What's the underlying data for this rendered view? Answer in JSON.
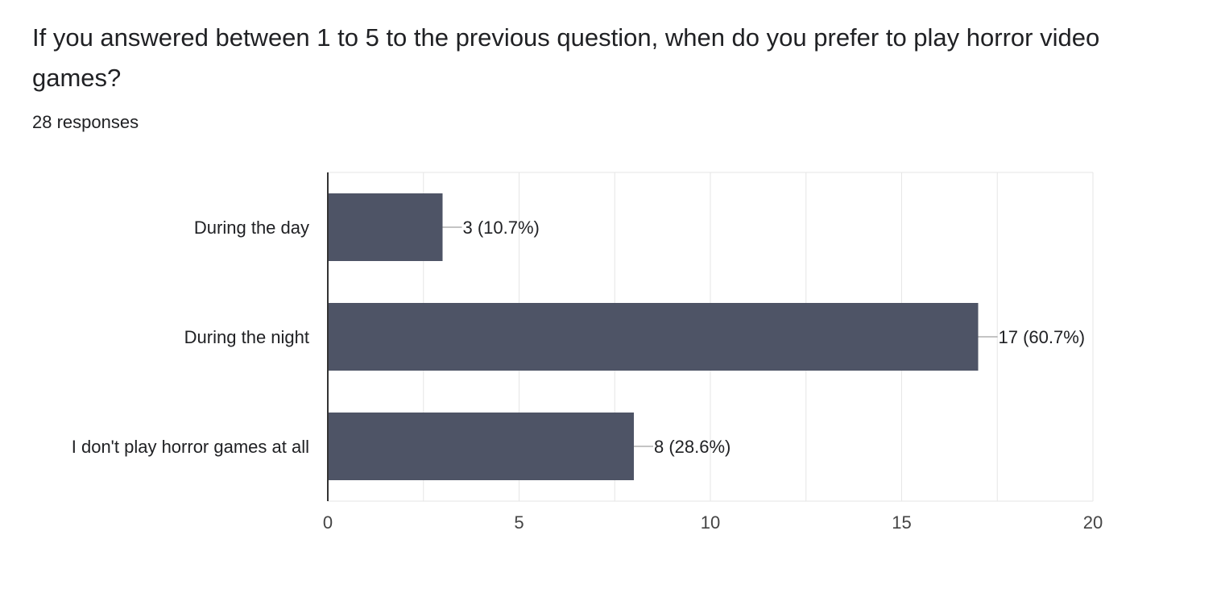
{
  "question": {
    "title": "If you answered between 1 to 5 to the previous question, when do you prefer to play horror video games?",
    "responses": "28 responses"
  },
  "colors": {
    "bar": "#4e5466",
    "grid": "#e6e6e6",
    "axis": "#333333",
    "leader": "#888888"
  },
  "chart_data": {
    "type": "bar",
    "orientation": "horizontal",
    "title": "If you answered between 1 to 5 to the previous question, when do you prefer to play horror video games?",
    "subtitle": "28 responses",
    "categories": [
      "During the day",
      "During the night",
      "I don't play horror games at all"
    ],
    "values": [
      3,
      17,
      8
    ],
    "data_labels": [
      "3 (10.7%)",
      "17 (60.7%)",
      "8 (28.6%)"
    ],
    "xlabel": "",
    "ylabel": "",
    "xlim": [
      0,
      20
    ],
    "ticks": [
      0,
      5,
      10,
      15,
      20
    ],
    "tick_labels": [
      "0",
      "5",
      "10",
      "15",
      "20"
    ],
    "grid": true,
    "legend": "none"
  }
}
